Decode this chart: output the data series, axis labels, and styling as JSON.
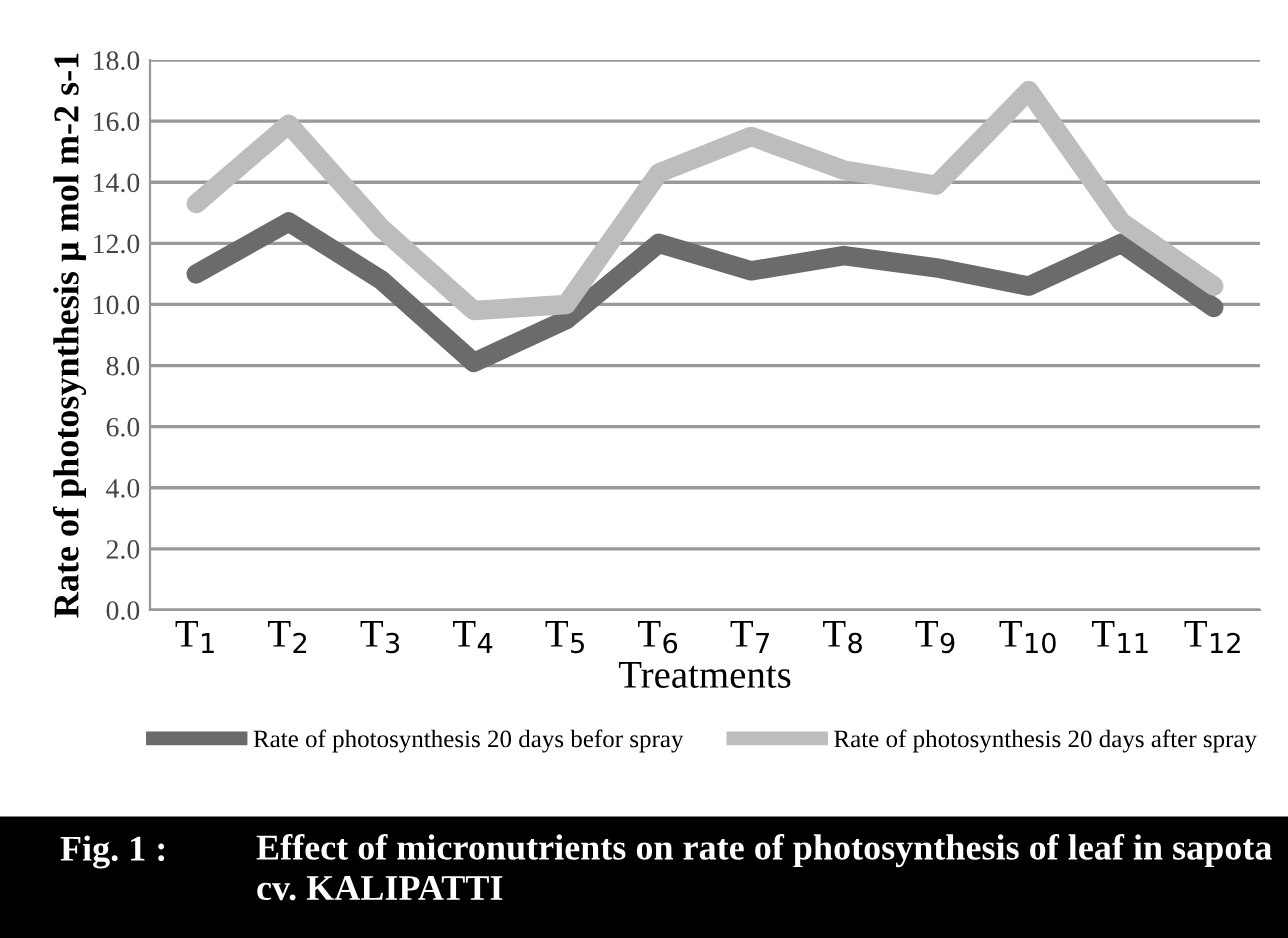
{
  "chart_data": {
    "type": "line",
    "xlabel": "Treatments",
    "ylabel": "Rate of photosynthesis µ mol m-2 s-1",
    "categories": [
      "T$_{1}$",
      "T$_{2}$",
      "T$_{3}$",
      "T$_{4}$",
      "T$_{5}$",
      "T$_{6}$",
      "T$_{7}$",
      "T$_{8}$",
      "T$_{9}$",
      "T$_{10}$",
      "T$_{11}$",
      "T$_{12}$"
    ],
    "series": [
      {
        "name": "Rate of photosynthesis 20 days befor spray",
        "color": "#6b6b6b",
        "values": [
          11.0,
          12.7,
          10.8,
          8.1,
          9.5,
          12.0,
          11.1,
          11.6,
          11.2,
          10.6,
          12.0,
          9.9
        ]
      },
      {
        "name": "Rate of photosynthesis 20 days after spray",
        "color": "#bdbdbd",
        "values": [
          13.3,
          15.9,
          12.5,
          9.8,
          10.0,
          14.3,
          15.5,
          14.4,
          13.9,
          17.0,
          12.7,
          10.6
        ]
      }
    ],
    "ylim": [
      0,
      18
    ],
    "yticks": [
      {
        "value": 0,
        "label": "0.0"
      },
      {
        "value": 2,
        "label": "2.0"
      },
      {
        "value": 4,
        "label": "4.0"
      },
      {
        "value": 6,
        "label": "6.0"
      },
      {
        "value": 8,
        "label": "8.0"
      },
      {
        "value": 10,
        "label": "10.0"
      },
      {
        "value": 12,
        "label": "12.0"
      },
      {
        "value": 14,
        "label": "14.0"
      },
      {
        "value": 16,
        "label": "16.0"
      },
      {
        "value": 18,
        "label": "18.0"
      }
    ],
    "grid": "y",
    "legend": "bottom",
    "marker": "none",
    "line_style": "solid",
    "annotations": [
      "Fig. 1 :",
      "Effect of micronutrients on rate of photosynthesis of leaf in sapota cv. KALIPATTI"
    ]
  }
}
